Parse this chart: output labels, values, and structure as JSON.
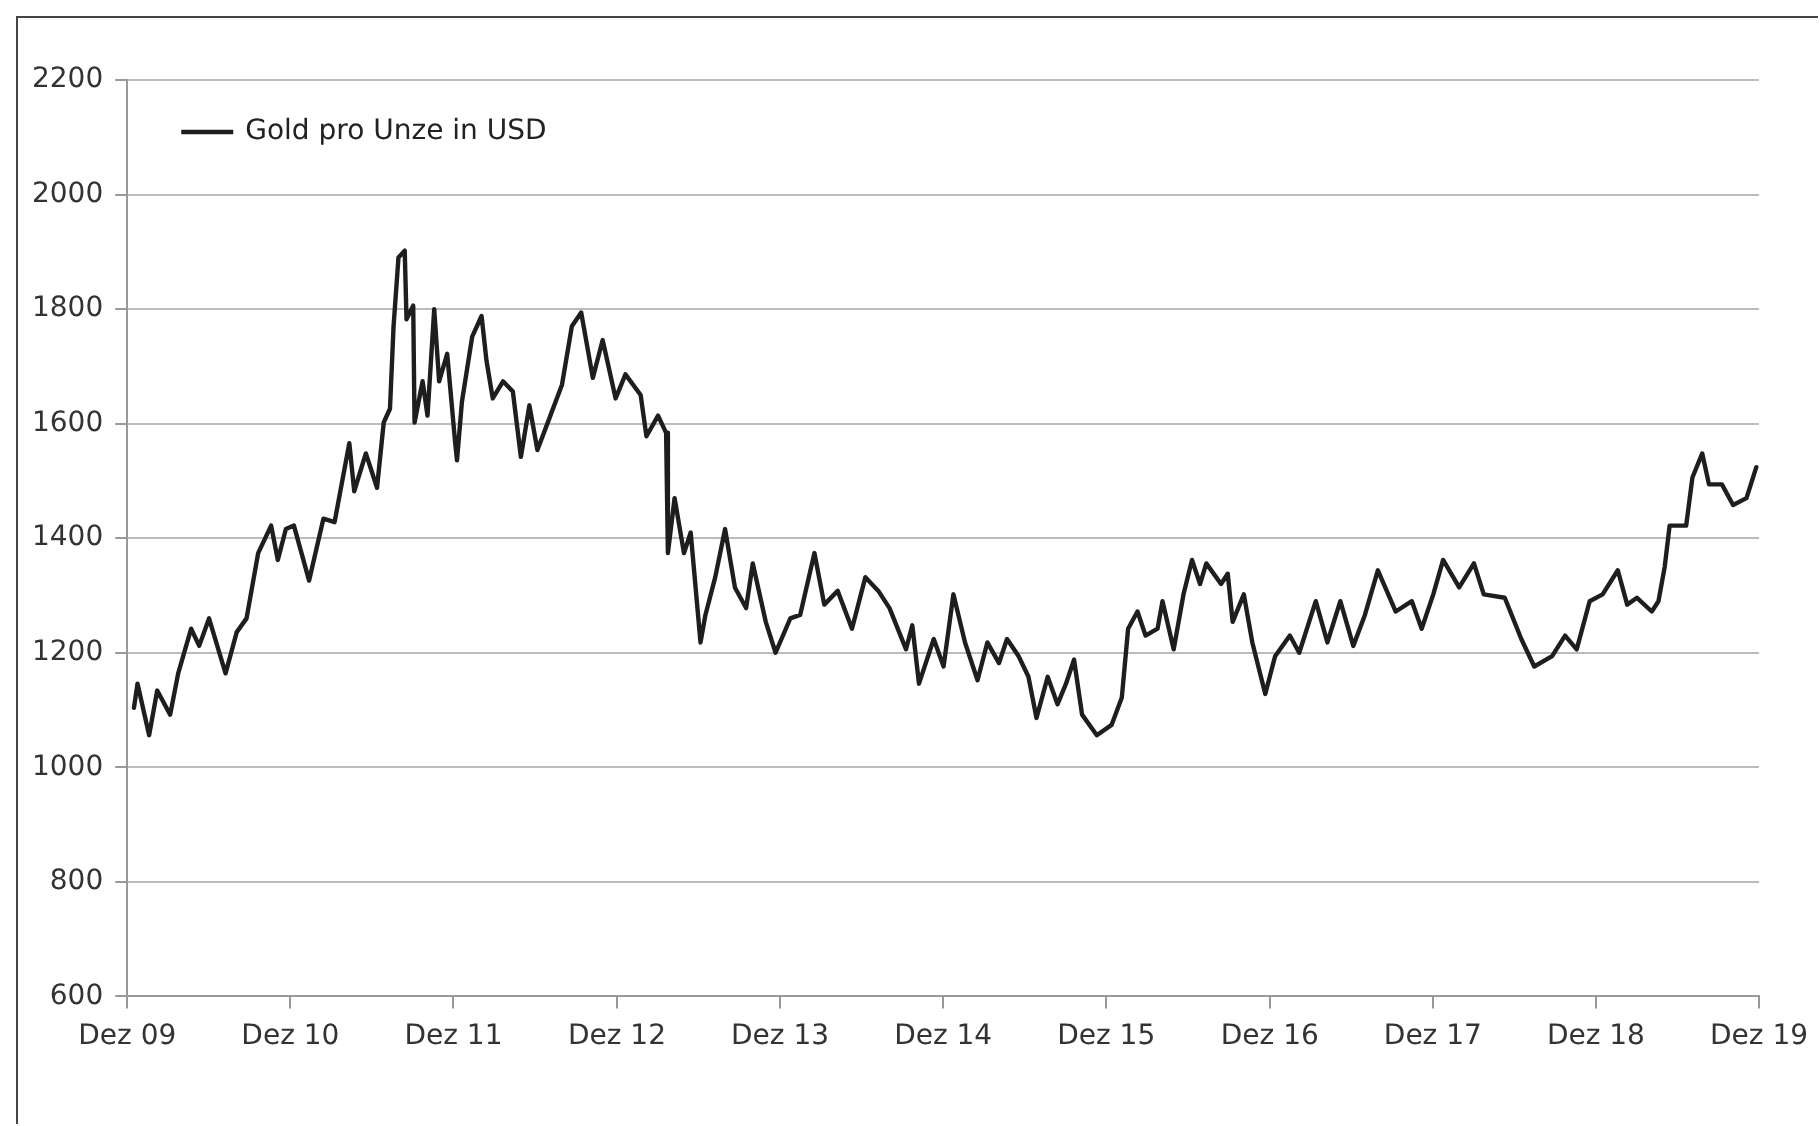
{
  "chart_data": {
    "type": "line",
    "x": [
      "2009-12-16",
      "2009-12-24",
      "2010-01-19",
      "2010-02-06",
      "2010-03-07",
      "2010-03-25",
      "2010-04-23",
      "2010-05-11",
      "2010-06-02",
      "2010-07-09",
      "2010-08-03",
      "2010-08-25",
      "2010-09-20",
      "2010-10-19",
      "2010-11-03",
      "2010-11-21",
      "2010-12-09",
      "2011-01-12",
      "2011-02-13",
      "2011-03-10",
      "2011-04-12",
      "2011-04-23",
      "2011-05-19",
      "2011-06-13",
      "2011-06-28",
      "2011-07-12",
      "2011-07-20",
      "2011-07-31",
      "2011-08-14",
      "2011-08-18",
      "2011-09-02",
      "2011-09-05",
      "2011-09-23",
      "2011-10-04",
      "2011-10-19",
      "2011-10-30",
      "2011-11-17",
      "2011-12-05",
      "2011-12-09",
      "2011-12-20",
      "2012-01-12",
      "2012-02-02",
      "2012-02-13",
      "2012-02-27",
      "2012-03-21",
      "2012-04-12",
      "2012-04-30",
      "2012-05-19",
      "2012-06-06",
      "2012-07-05",
      "2012-07-31",
      "2012-08-22",
      "2012-09-12",
      "2012-10-08",
      "2012-10-30",
      "2012-11-28",
      "2012-12-20",
      "2013-01-23",
      "2013-02-05",
      "2013-03-03",
      "2013-03-21",
      "2013-03-25",
      "2013-04-09",
      "2013-04-30",
      "2013-05-15",
      "2013-06-06",
      "2013-06-17",
      "2013-07-09",
      "2013-07-31",
      "2013-08-22",
      "2013-09-16",
      "2013-10-01",
      "2013-10-30",
      "2013-11-21",
      "2013-12-24",
      "2014-01-15",
      "2014-02-16",
      "2014-03-10",
      "2014-04-09",
      "2014-05-11",
      "2014-06-10",
      "2014-07-09",
      "2014-08-03",
      "2014-09-09",
      "2014-09-23",
      "2014-10-08",
      "2014-11-10",
      "2014-12-02",
      "2014-12-24",
      "2015-01-19",
      "2015-02-16",
      "2015-03-10",
      "2015-04-05",
      "2015-04-23",
      "2015-05-19",
      "2015-06-10",
      "2015-06-28",
      "2015-07-23",
      "2015-08-14",
      "2015-09-02",
      "2015-09-20",
      "2015-10-08",
      "2015-11-10",
      "2015-12-13",
      "2016-01-05",
      "2016-01-19",
      "2016-02-09",
      "2016-02-27",
      "2016-03-25",
      "2016-04-05",
      "2016-04-30",
      "2016-05-22",
      "2016-06-10",
      "2016-06-28",
      "2016-07-12",
      "2016-08-14",
      "2016-08-29",
      "2016-09-09",
      "2016-10-04",
      "2016-10-23",
      "2016-11-21",
      "2016-12-13",
      "2017-01-15",
      "2017-02-05",
      "2017-03-14",
      "2017-04-09",
      "2017-05-08",
      "2017-06-06",
      "2017-07-02",
      "2017-07-31",
      "2017-09-09",
      "2017-10-15",
      "2017-11-06",
      "2017-12-02",
      "2017-12-24",
      "2018-01-29",
      "2018-03-03",
      "2018-03-25",
      "2018-05-11",
      "2018-06-17",
      "2018-07-16",
      "2018-08-25",
      "2018-09-23",
      "2018-10-19",
      "2018-11-17",
      "2018-12-16",
      "2019-01-19",
      "2019-02-09",
      "2019-03-03",
      "2019-04-05",
      "2019-04-20",
      "2019-05-04",
      "2019-05-15",
      "2019-06-21",
      "2019-07-05",
      "2019-07-27",
      "2019-08-11",
      "2019-09-09",
      "2019-10-04",
      "2019-11-03",
      "2019-11-25"
    ],
    "series": [
      {
        "name": "Gold pro Unze in USD",
        "color": "#1e1e1e",
        "values": [
          1104,
          1146,
          1056,
          1134,
          1092,
          1164,
          1242,
          1212,
          1260,
          1164,
          1236,
          1260,
          1374,
          1422,
          1362,
          1416,
          1422,
          1326,
          1434,
          1428,
          1566,
          1482,
          1548,
          1488,
          1602,
          1626,
          1770,
          1890,
          1902,
          1782,
          1806,
          1602,
          1674,
          1614,
          1800,
          1674,
          1722,
          1566,
          1536,
          1638,
          1752,
          1788,
          1710,
          1644,
          1674,
          1656,
          1542,
          1632,
          1554,
          1614,
          1668,
          1770,
          1794,
          1680,
          1746,
          1644,
          1686,
          1650,
          1578,
          1614,
          1584,
          1374,
          1470,
          1374,
          1410,
          1218,
          1266,
          1332,
          1416,
          1314,
          1278,
          1356,
          1254,
          1200,
          1260,
          1266,
          1374,
          1284,
          1308,
          1242,
          1332,
          1308,
          1278,
          1206,
          1248,
          1146,
          1224,
          1176,
          1302,
          1218,
          1152,
          1218,
          1182,
          1224,
          1194,
          1158,
          1086,
          1158,
          1110,
          1146,
          1188,
          1092,
          1056,
          1074,
          1122,
          1242,
          1272,
          1230,
          1242,
          1290,
          1206,
          1302,
          1362,
          1320,
          1356,
          1320,
          1338,
          1254,
          1302,
          1218,
          1128,
          1194,
          1230,
          1200,
          1290,
          1218,
          1290,
          1212,
          1266,
          1344,
          1272,
          1290,
          1242,
          1302,
          1362,
          1314,
          1356,
          1302,
          1296,
          1224,
          1176,
          1194,
          1230,
          1206,
          1290,
          1302,
          1344,
          1284,
          1296,
          1272,
          1290,
          1350,
          1422,
          1422,
          1506,
          1548,
          1494,
          1494,
          1458,
          1470,
          1524
        ]
      }
    ],
    "xlim": [
      "2009-12",
      "2019-12"
    ],
    "xticks": [
      {
        "value": "2009-12",
        "label": "Dez 09"
      },
      {
        "value": "2010-12",
        "label": "Dez 10"
      },
      {
        "value": "2011-12",
        "label": "Dez 11"
      },
      {
        "value": "2012-12",
        "label": "Dez 12"
      },
      {
        "value": "2013-12",
        "label": "Dez 13"
      },
      {
        "value": "2014-12",
        "label": "Dez 14"
      },
      {
        "value": "2015-12",
        "label": "Dez 15"
      },
      {
        "value": "2016-12",
        "label": "Dez 16"
      },
      {
        "value": "2017-12",
        "label": "Dez 17"
      },
      {
        "value": "2018-12",
        "label": "Dez 18"
      },
      {
        "value": "2019-12",
        "label": "Dez 19"
      }
    ],
    "ylim": [
      600,
      2200
    ],
    "yticks": [
      600,
      800,
      1000,
      1200,
      1400,
      1600,
      1800,
      2000,
      2200
    ],
    "grid": "y",
    "legend": "top left",
    "marker": "none",
    "line_style": "solid"
  }
}
